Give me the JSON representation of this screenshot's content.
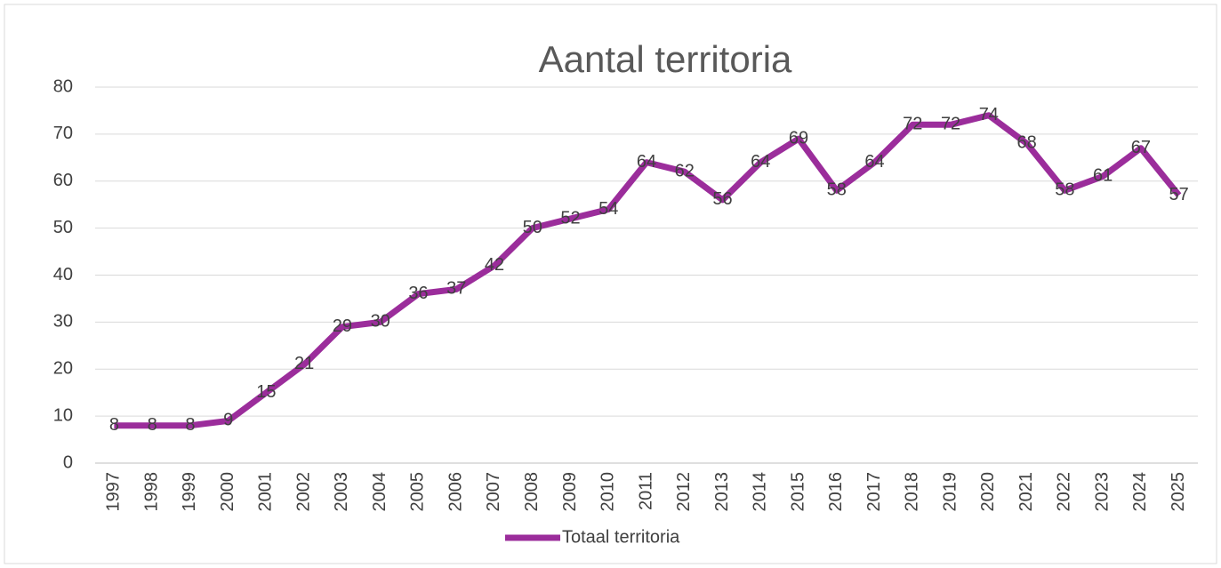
{
  "chart_data": {
    "type": "line",
    "title": "Aantal territoria",
    "categories": [
      "1997",
      "1998",
      "1999",
      "2000",
      "2001",
      "2002",
      "2003",
      "2004",
      "2005",
      "2006",
      "2007",
      "2008",
      "2009",
      "2010",
      "2011",
      "2012",
      "2013",
      "2014",
      "2015",
      "2016",
      "2017",
      "2018",
      "2019",
      "2020",
      "2021",
      "2022",
      "2023",
      "2024",
      "2025"
    ],
    "series": [
      {
        "name": "Totaal territoria",
        "color": "#9b2d9b",
        "values": [
          8,
          8,
          8,
          9,
          15,
          21,
          29,
          30,
          36,
          37,
          42,
          50,
          52,
          54,
          64,
          62,
          56,
          64,
          69,
          58,
          64,
          72,
          72,
          74,
          68,
          58,
          61,
          67,
          57
        ]
      }
    ],
    "ylim": [
      0,
      80
    ],
    "yticks": [
      0,
      10,
      20,
      30,
      40,
      50,
      60,
      70,
      80
    ],
    "grid": true,
    "legend": "bottom"
  }
}
